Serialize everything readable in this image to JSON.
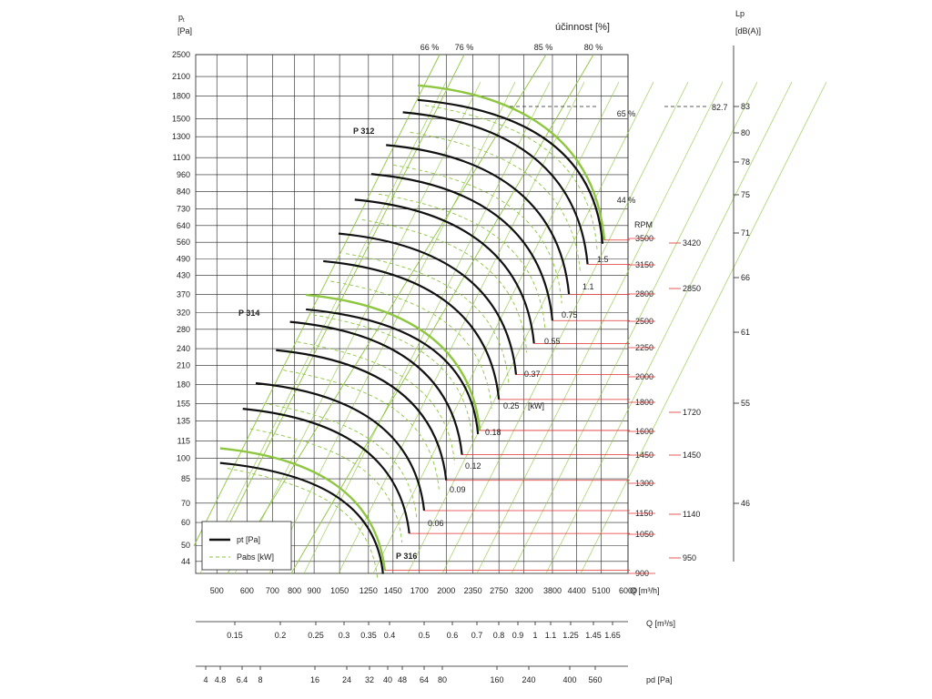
{
  "chart_data": {
    "type": "line",
    "title": "účinnost [%]",
    "y_axis": {
      "symbol": "p",
      "subscript": "t",
      "unit": "[Pa]",
      "ticks": [
        44,
        50,
        60,
        70,
        85,
        100,
        115,
        135,
        155,
        180,
        210,
        240,
        280,
        320,
        370,
        430,
        490,
        560,
        640,
        730,
        840,
        960,
        1100,
        1300,
        1500,
        1800,
        2100,
        2500
      ],
      "scale": "log"
    },
    "x_axis": {
      "label": "Q [m³/h]",
      "ticks": [
        500,
        600,
        700,
        800,
        900,
        1050,
        1250,
        1450,
        1700,
        2000,
        2350,
        2750,
        3200,
        3800,
        4400,
        5100,
        6000
      ],
      "scale": "log"
    },
    "q_s_axis": {
      "label": "Q  [m³/s]",
      "ticks": [
        "0.15",
        "0.2",
        "0.25",
        "0.3",
        "0.35",
        "0.4",
        "0.5",
        "0.6",
        "0.7",
        "0.8",
        "0.9",
        "1",
        "1.1",
        "1.25",
        "1.45",
        "1.65"
      ]
    },
    "pd_axis": {
      "label": "pd  [Pa]",
      "ticks": [
        "4",
        "4.8",
        "6.4",
        "8",
        "16",
        "24",
        "32",
        "40",
        "48",
        "64",
        "80",
        "160",
        "240",
        "400",
        "560"
      ]
    },
    "efficiency_lines": [
      {
        "label": "66 %"
      },
      {
        "label": "76 %"
      },
      {
        "label": "85 %"
      },
      {
        "label": "80 %"
      },
      {
        "label": "65 %"
      },
      {
        "label": "44 %"
      }
    ],
    "rpm": {
      "header": "RPM",
      "values": [
        3500,
        3150,
        2800,
        2500,
        2250,
        2000,
        1800,
        1600,
        1450,
        1300,
        1150,
        1050,
        900
      ]
    },
    "power_labels": [
      "1.5",
      "1.1",
      "0.75",
      "0.55",
      "0.37",
      "0.25",
      "[kW]",
      "0.18",
      "0.12",
      "0.09",
      "0.06"
    ],
    "lp_axis": {
      "title": "Lp",
      "unit": "[dB(A)]",
      "ticks": [
        83,
        80,
        78,
        75,
        71,
        66,
        61,
        55,
        46
      ],
      "marker": "82.7"
    },
    "secondary_rpm": [
      "3420",
      "2850",
      "1720",
      "1450",
      "1140",
      "950"
    ],
    "curve_labels": [
      "P 312",
      "P 314",
      "P 316"
    ],
    "series": [
      {
        "name": "P 312",
        "rpm": 3500,
        "end_q": 5200,
        "end_p": 570
      },
      {
        "rpm": 3150,
        "end_q": 4700,
        "end_p": 470
      },
      {
        "rpm": 2800,
        "end_q": 4200,
        "end_p": 370
      },
      {
        "rpm": 2500,
        "end_q": 3800,
        "end_p": 300
      },
      {
        "rpm": 2250,
        "end_q": 3400,
        "end_p": 250
      },
      {
        "rpm": 2000,
        "end_q": 3050,
        "end_p": 195
      },
      {
        "rpm": 1800,
        "end_q": 2750,
        "end_p": 160
      },
      {
        "name": "P 314",
        "rpm": 1600,
        "end_q": 2450,
        "end_p": 125
      },
      {
        "rpm": 1450,
        "end_q": 2200,
        "end_p": 103
      },
      {
        "rpm": 1300,
        "end_q": 2000,
        "end_p": 84
      },
      {
        "rpm": 1150,
        "end_q": 1750,
        "end_p": 66
      },
      {
        "rpm": 1050,
        "end_q": 1600,
        "end_p": 55
      },
      {
        "name": "P 316",
        "rpm": 900,
        "end_q": 1380,
        "end_p": 41
      }
    ],
    "legend": {
      "items": [
        "pt [Pa]",
        "Pabs [kW]"
      ],
      "placement": "bottom-left"
    },
    "colors": {
      "black_curve": "#111111",
      "green": "#8dc63f",
      "grid": "#222222",
      "red": "#e03030"
    }
  }
}
